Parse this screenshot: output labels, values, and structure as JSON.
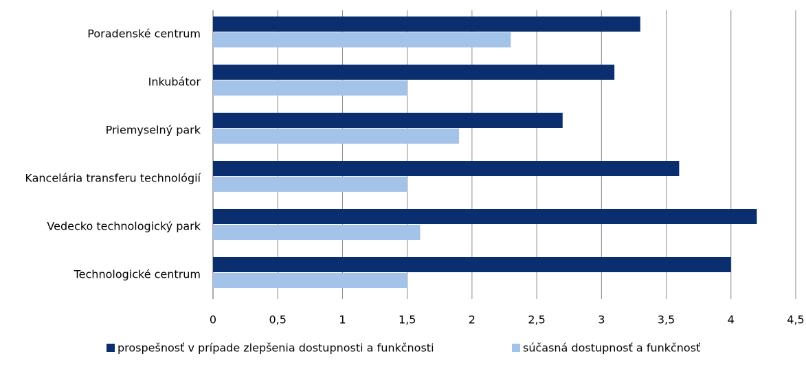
{
  "chart_data": {
    "type": "barh",
    "categories": [
      "Poradenské centrum",
      "Inkubátor",
      "Priemyselný park",
      "Kancelária transferu technológií",
      "Vedecko technologický park",
      "Technologické centrum"
    ],
    "series": [
      {
        "name": "prospešnosť v prípade zlepšenia dostupnosti a funkčnosti",
        "color": "#0b2f6e",
        "values": [
          3.3,
          3.1,
          2.7,
          3.6,
          4.2,
          4.0
        ]
      },
      {
        "name": "súčasná dostupnosť a funkčnosť",
        "color": "#a3c3e8",
        "values": [
          2.3,
          1.5,
          1.9,
          1.5,
          1.6,
          1.5
        ]
      }
    ],
    "xlim": [
      0,
      4.5
    ],
    "xticks": [
      0,
      {
        "value": 0.5,
        "label": "0,5"
      },
      1,
      {
        "value": 1.5,
        "label": "1,5"
      },
      2,
      {
        "value": 2.5,
        "label": "2,5"
      },
      3,
      {
        "value": 3.5,
        "label": "3,5"
      },
      4,
      {
        "value": 4.5,
        "label": "4,5"
      }
    ],
    "grid": true,
    "legend": "bottom"
  }
}
